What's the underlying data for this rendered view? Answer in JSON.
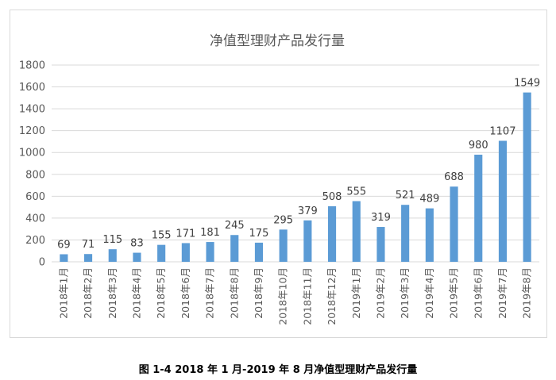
{
  "chart_data": {
    "type": "bar",
    "title": "净值型理财产品发行量",
    "xlabel": "",
    "ylabel": "",
    "categories": [
      "2018年1月",
      "2018年2月",
      "2018年3月",
      "2018年4月",
      "2018年5月",
      "2018年6月",
      "2018年7月",
      "2018年8月",
      "2018年9月",
      "2018年10月",
      "2018年11月",
      "2018年12月",
      "2019年1月",
      "2019年2月",
      "2019年3月",
      "2019年4月",
      "2019年5月",
      "2019年6月",
      "2019年7月",
      "2019年8月"
    ],
    "values": [
      69,
      71,
      115,
      83,
      155,
      171,
      181,
      245,
      175,
      295,
      379,
      508,
      555,
      319,
      521,
      489,
      688,
      980,
      1107,
      1549
    ],
    "ylim": [
      0,
      1800
    ],
    "yticks": [
      0,
      200,
      400,
      600,
      800,
      1000,
      1200,
      1400,
      1600,
      1800
    ],
    "grid": true,
    "legend": "none",
    "bar_color": "#5b9bd5",
    "grid_color": "#d9d9d9"
  },
  "caption": "图 1-4 2018 年 1 月-2019 年 8 月净值型理财产品发行量"
}
